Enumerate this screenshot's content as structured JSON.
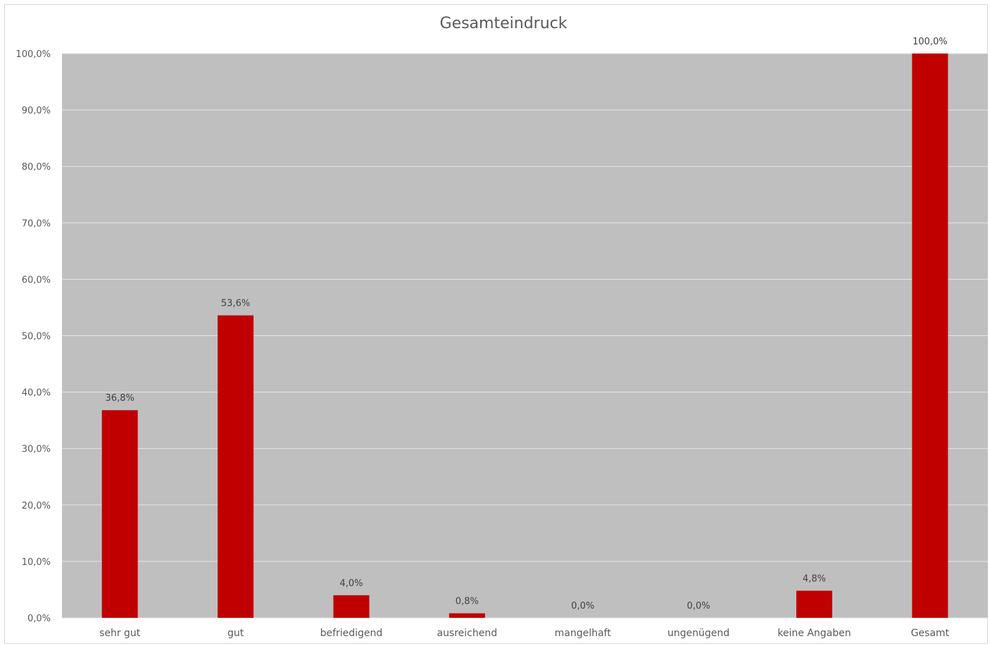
{
  "chart_data": {
    "type": "bar",
    "title": "Gesamteindruck",
    "xlabel": "",
    "ylabel": "",
    "categories": [
      "sehr gut",
      "gut",
      "befriedigend",
      "ausreichend",
      "mangelhaft",
      "ungenügend",
      "keine Angaben",
      "Gesamt"
    ],
    "values": [
      36.8,
      53.6,
      4.0,
      0.8,
      0.0,
      0.0,
      4.8,
      100.0
    ],
    "data_labels": [
      "36,8%",
      "53,6%",
      "4,0%",
      "0,8%",
      "0,0%",
      "0,0%",
      "4,8%",
      "100,0%"
    ],
    "ylim": [
      0,
      100
    ],
    "yticks": [
      0,
      10,
      20,
      30,
      40,
      50,
      60,
      70,
      80,
      90,
      100
    ],
    "ytick_labels": [
      "0,0%",
      "10,0%",
      "20,0%",
      "30,0%",
      "40,0%",
      "50,0%",
      "60,0%",
      "70,0%",
      "80,0%",
      "90,0%",
      "100,0%"
    ],
    "grid": true,
    "legend": "none",
    "colors": {
      "bar": "#c00000",
      "plot_background": "#bfbfbf",
      "gridline": "#e6e6e6"
    }
  }
}
